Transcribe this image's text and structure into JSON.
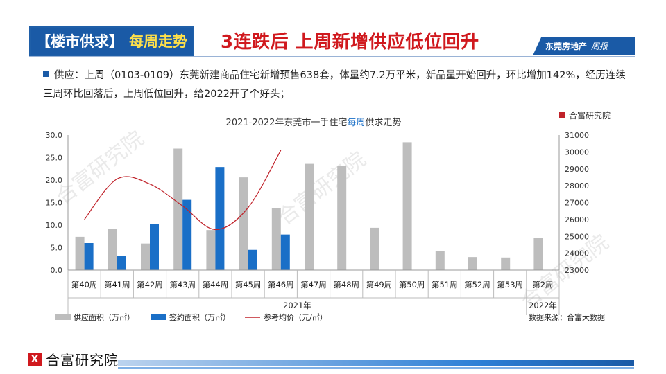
{
  "header": {
    "tag_part1": "【楼市供求】",
    "tag_part2": "每周走势",
    "title": "3连跌后 上周新增供应低位回升",
    "logo_text": "东莞房地产",
    "logo_script": "周报"
  },
  "bullet": "供应：上周（0103-0109）东莞新建商品住宅新增预售638套，体量约7.2万平米，新品量开始回升，环比增加142%，经历连续三周环比回落后，上周低位回升，给2022开了个好头；",
  "footer": {
    "logo_mark": "X",
    "logo_text": "合富研究院"
  },
  "colors": {
    "supply": "#bdbdbd",
    "signed": "#1a6fc7",
    "price": "#c0222a",
    "accent": "#1a5aa6",
    "title_red": "#d0191e"
  },
  "chart_data": {
    "type": "bar",
    "title_part1": "2021-2022年东莞市一手住宅",
    "title_part2": "每周",
    "title_part3": "供求走势",
    "brand": "合富研究院",
    "categories": [
      "第40周",
      "第41周",
      "第42周",
      "第43周",
      "第44周",
      "第45周",
      "第46周",
      "第47周",
      "第48周",
      "第49周",
      "第50周",
      "第51周",
      "第52周",
      "第53周",
      "第2周"
    ],
    "year_groups": [
      {
        "label": "2021年",
        "start": 0,
        "end": 13
      },
      {
        "label": "2022年",
        "start": 14,
        "end": 14
      }
    ],
    "ylim": [
      0,
      30
    ],
    "yticks": [
      "0.0",
      "5.0",
      "10.0",
      "15.0",
      "20.0",
      "25.0",
      "30.0"
    ],
    "y2lim": [
      23000,
      31000
    ],
    "y2ticks": [
      "23000",
      "24000",
      "25000",
      "26000",
      "27000",
      "28000",
      "29000",
      "30000",
      "31000"
    ],
    "series": [
      {
        "name": "供应面积（万㎡）",
        "kind": "bar",
        "axis": "left",
        "values": [
          7.4,
          9.2,
          5.9,
          27.0,
          8.9,
          20.6,
          13.7,
          23.6,
          23.2,
          9.4,
          28.4,
          4.2,
          2.9,
          2.8,
          7.1
        ]
      },
      {
        "name": "签约面积（万㎡）",
        "kind": "bar",
        "axis": "left",
        "values": [
          6.0,
          3.2,
          10.2,
          15.6,
          22.9,
          4.5,
          7.9,
          null,
          null,
          null,
          null,
          null,
          null,
          null,
          null
        ]
      },
      {
        "name": "参考均价（元/㎡）",
        "kind": "line",
        "axis": "right",
        "values": [
          26000,
          28400,
          28100,
          26800,
          25400,
          26700,
          30100,
          null,
          null,
          null,
          null,
          null,
          null,
          null,
          null
        ]
      }
    ],
    "source": "数据来源：合富大数据",
    "watermark": "合富研究院"
  }
}
